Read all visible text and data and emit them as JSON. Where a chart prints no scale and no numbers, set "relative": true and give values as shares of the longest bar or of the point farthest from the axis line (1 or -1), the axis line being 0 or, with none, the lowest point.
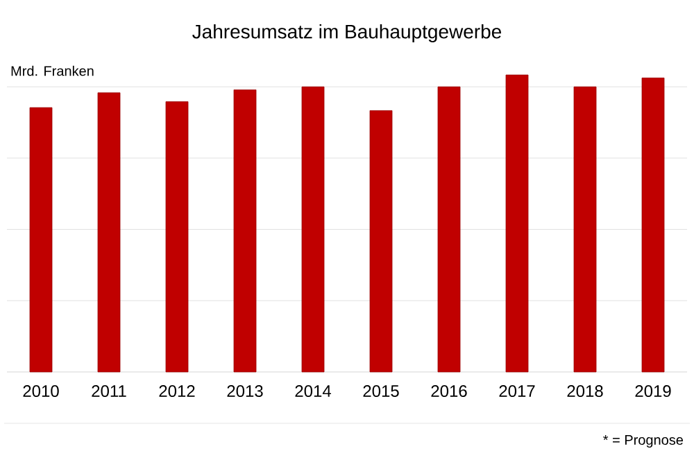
{
  "chart_data": {
    "type": "bar",
    "title": "Jahresumsatz im Bauhauptgewerbe",
    "ylabel": "Mrd. Franken",
    "categories": [
      "2010",
      "2011",
      "2012",
      "2013",
      "2014",
      "2015",
      "2016",
      "2017",
      "2018",
      "2019"
    ],
    "values": [
      0.89,
      0.94,
      0.91,
      0.95,
      0.96,
      0.88,
      0.96,
      1,
      0.96,
      0.99
    ],
    "color": "#c00000",
    "relative": true,
    "grid": "y",
    "annotations": [
      "* = Prognose"
    ]
  }
}
